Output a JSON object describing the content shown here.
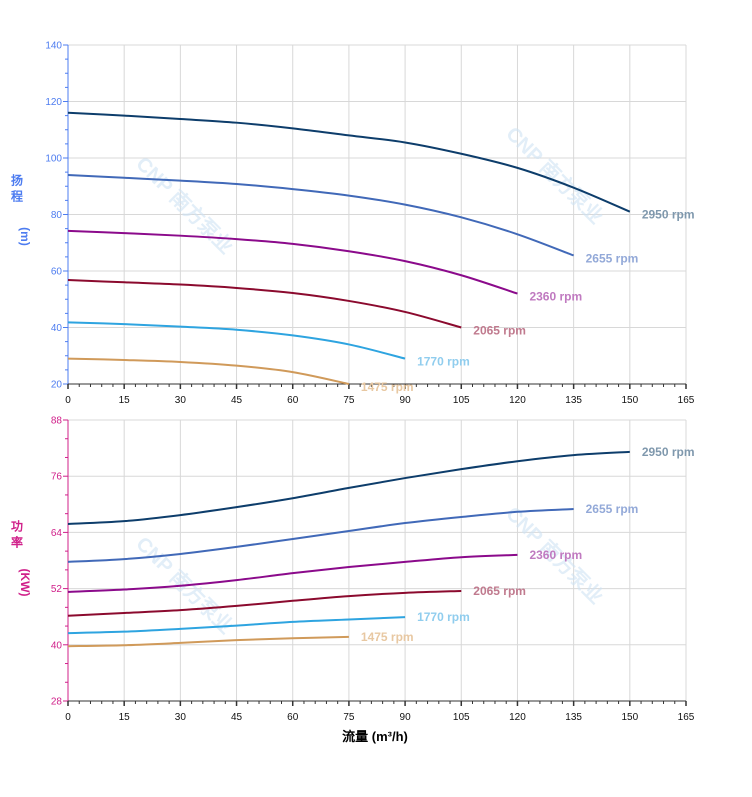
{
  "watermark": "CNP 南方泵业",
  "chart_data": [
    {
      "type": "line",
      "ylabel_chars": [
        "扬",
        "程"
      ],
      "ylabel_unit": "(m)",
      "xlim": [
        0,
        165
      ],
      "ylim": [
        20,
        140
      ],
      "xticks": [
        0,
        15,
        30,
        45,
        60,
        75,
        90,
        105,
        120,
        135,
        150,
        165
      ],
      "yticks": [
        20,
        40,
        60,
        80,
        100,
        120,
        140
      ],
      "grid": true,
      "axis_color": "#4d7cf0",
      "series": [
        {
          "name": "2950 rpm",
          "color": "#0d3d6b",
          "label_color": "#7f98ad",
          "x": [
            0,
            15,
            30,
            45,
            60,
            75,
            90,
            105,
            120,
            135,
            150
          ],
          "y": [
            116,
            115,
            113.8,
            112.5,
            110.5,
            108,
            105.5,
            101.5,
            96.5,
            89.5,
            81
          ]
        },
        {
          "name": "2655 rpm",
          "color": "#4169b8",
          "label_color": "#93a9d8",
          "x": [
            0,
            15,
            30,
            45,
            60,
            75,
            90,
            105,
            120,
            135
          ],
          "y": [
            94,
            93,
            92,
            90.8,
            89,
            86.7,
            83.5,
            79,
            73,
            65.5
          ]
        },
        {
          "name": "2360 rpm",
          "color": "#8b0a8b",
          "label_color": "#c07ac0",
          "x": [
            0,
            15,
            30,
            45,
            60,
            75,
            90,
            105,
            120
          ],
          "y": [
            74.2,
            73.4,
            72.5,
            71.3,
            69.6,
            67,
            63.5,
            58.5,
            52
          ]
        },
        {
          "name": "2065 rpm",
          "color": "#8b0a2e",
          "label_color": "#c07a8e",
          "x": [
            0,
            15,
            30,
            45,
            60,
            75,
            90,
            105
          ],
          "y": [
            56.8,
            56,
            55.2,
            54,
            52.2,
            49.4,
            45.5,
            40
          ]
        },
        {
          "name": "1770 rpm",
          "color": "#2ea4e0",
          "label_color": "#90cdee",
          "x": [
            0,
            15,
            30,
            45,
            60,
            75,
            90
          ],
          "y": [
            41.8,
            41.2,
            40.3,
            39.2,
            37.2,
            34,
            29
          ]
        },
        {
          "name": "1475 rpm",
          "color": "#d09a5a",
          "label_color": "#e8c8a2",
          "x": [
            0,
            15,
            30,
            45,
            60,
            75
          ],
          "y": [
            29,
            28.5,
            27.8,
            26.5,
            24.2,
            20
          ]
        }
      ]
    },
    {
      "type": "line",
      "ylabel_chars": [
        "功",
        "率"
      ],
      "ylabel_unit": "(KW)",
      "xlabel": "流量 (m³/h)",
      "xlim": [
        0,
        165
      ],
      "ylim": [
        28,
        88
      ],
      "xticks": [
        0,
        15,
        30,
        45,
        60,
        75,
        90,
        105,
        120,
        135,
        150,
        165
      ],
      "yticks": [
        28,
        40,
        52,
        64,
        76,
        88
      ],
      "grid": true,
      "axis_color": "#d0208a",
      "series": [
        {
          "name": "2950 rpm",
          "color": "#0d3d6b",
          "label_color": "#7f98ad",
          "x": [
            0,
            15,
            30,
            45,
            60,
            75,
            90,
            105,
            120,
            135,
            150
          ],
          "y": [
            65.8,
            66.4,
            67.7,
            69.4,
            71.3,
            73.5,
            75.6,
            77.5,
            79.2,
            80.5,
            81.2
          ]
        },
        {
          "name": "2655 rpm",
          "color": "#4169b8",
          "label_color": "#93a9d8",
          "x": [
            0,
            15,
            30,
            45,
            60,
            75,
            90,
            105,
            120,
            135
          ],
          "y": [
            57.7,
            58.3,
            59.4,
            60.9,
            62.6,
            64.3,
            66,
            67.3,
            68.4,
            69
          ]
        },
        {
          "name": "2360 rpm",
          "color": "#8b0a8b",
          "label_color": "#c07ac0",
          "x": [
            0,
            15,
            30,
            45,
            60,
            75,
            90,
            105,
            120
          ],
          "y": [
            51.3,
            51.8,
            52.6,
            53.8,
            55.3,
            56.6,
            57.7,
            58.7,
            59.2
          ]
        },
        {
          "name": "2065 rpm",
          "color": "#8b0a2e",
          "label_color": "#c07a8e",
          "x": [
            0,
            15,
            30,
            45,
            60,
            75,
            90,
            105
          ],
          "y": [
            46.2,
            46.8,
            47.4,
            48.3,
            49.4,
            50.4,
            51.1,
            51.5
          ]
        },
        {
          "name": "1770 rpm",
          "color": "#2ea4e0",
          "label_color": "#90cdee",
          "x": [
            0,
            15,
            30,
            45,
            60,
            75,
            90
          ],
          "y": [
            42.5,
            42.8,
            43.4,
            44.1,
            44.9,
            45.4,
            45.9
          ]
        },
        {
          "name": "1475 rpm",
          "color": "#d09a5a",
          "label_color": "#e8c8a2",
          "x": [
            0,
            15,
            30,
            45,
            60,
            75
          ],
          "y": [
            39.7,
            39.9,
            40.4,
            41,
            41.4,
            41.7
          ]
        }
      ]
    }
  ]
}
